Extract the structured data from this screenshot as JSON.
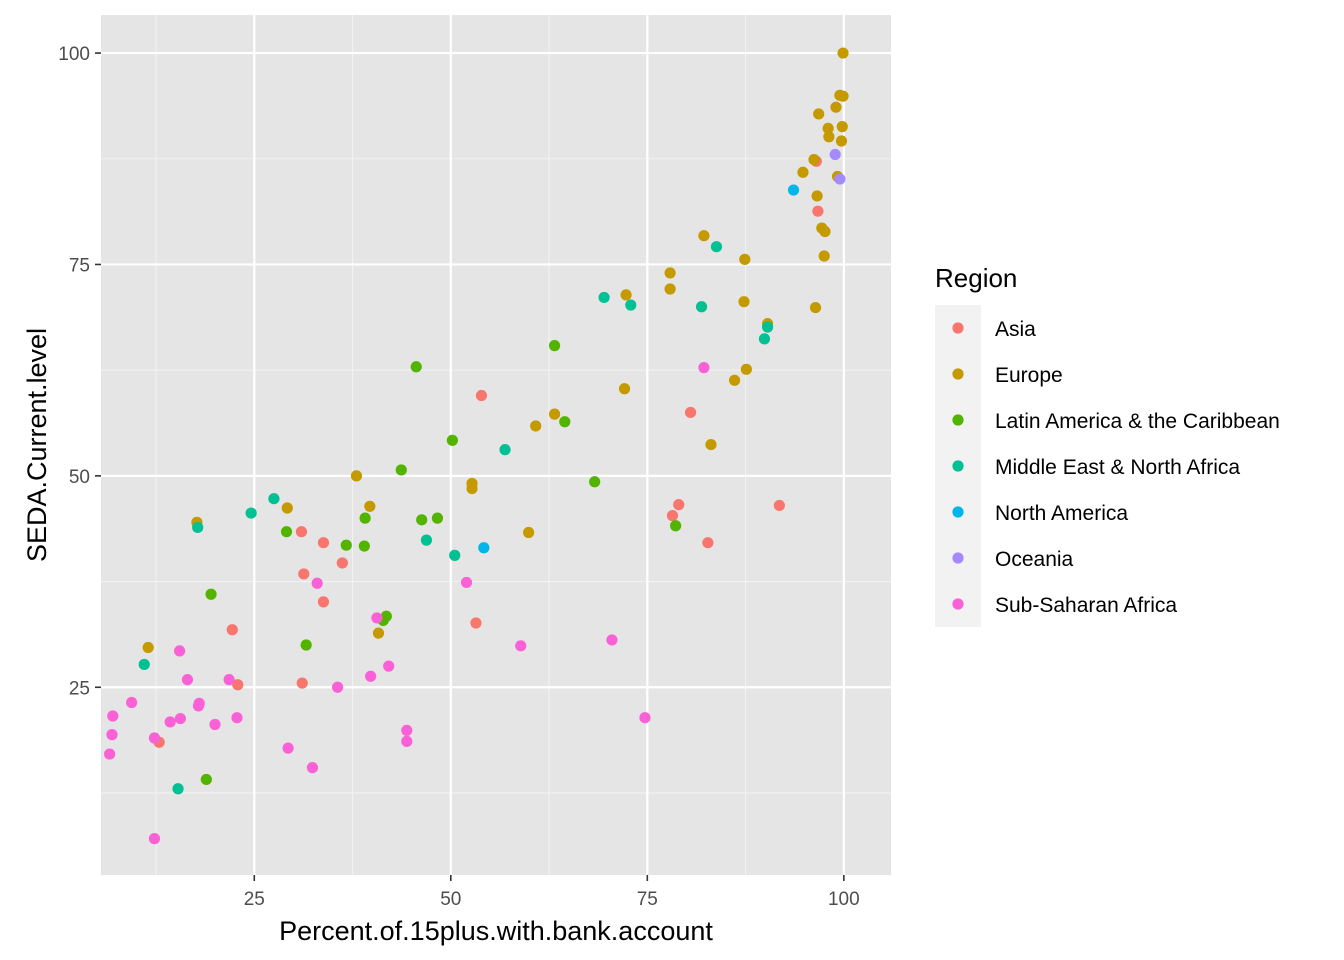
{
  "chart_data": {
    "type": "scatter",
    "title": "",
    "xlabel": "Percent.of.15plus.with.bank.account",
    "ylabel": "SEDA.Current.level",
    "xlim": [
      5.5,
      106
    ],
    "ylim": [
      2.8,
      104.5
    ],
    "xticks": [
      25,
      50,
      75,
      100
    ],
    "xtick_labels": [
      "25",
      "50",
      "75",
      "100"
    ],
    "yticks": [
      25,
      50,
      75,
      100
    ],
    "ytick_labels": [
      "25",
      "50",
      "75",
      "100"
    ],
    "grid": true,
    "background": "#E5E5E5",
    "legend": {
      "title": "Region",
      "position": "right"
    },
    "series": [
      {
        "name": "Asia",
        "color": "#F8766D",
        "points": [
          [
            96.5,
            87.2
          ],
          [
            96.7,
            81.3
          ],
          [
            53.9,
            59.5
          ],
          [
            80.5,
            57.5
          ],
          [
            91.8,
            46.5
          ],
          [
            79,
            46.6
          ],
          [
            78.2,
            45.3
          ],
          [
            82.7,
            42.1
          ],
          [
            31,
            43.4
          ],
          [
            33.8,
            42.1
          ],
          [
            36.2,
            39.7
          ],
          [
            31.3,
            38.4
          ],
          [
            33.8,
            35.1
          ],
          [
            53.2,
            32.6
          ],
          [
            22.2,
            31.8
          ],
          [
            22.9,
            25.3
          ],
          [
            31.1,
            25.5
          ],
          [
            12.9,
            18.5
          ]
        ]
      },
      {
        "name": "Europe",
        "color": "#C49A00",
        "points": [
          [
            99.9,
            100
          ],
          [
            99.5,
            95
          ],
          [
            99.9,
            94.9
          ],
          [
            99,
            93.6
          ],
          [
            96.8,
            92.8
          ],
          [
            98,
            91.1
          ],
          [
            99.8,
            91.3
          ],
          [
            98.1,
            90.1
          ],
          [
            99.7,
            89.6
          ],
          [
            96.2,
            87.4
          ],
          [
            94.8,
            85.9
          ],
          [
            99.2,
            85.4
          ],
          [
            96.6,
            83.1
          ],
          [
            97.2,
            79.3
          ],
          [
            97.6,
            78.9
          ],
          [
            82.2,
            78.4
          ],
          [
            97.5,
            76
          ],
          [
            87.4,
            75.6
          ],
          [
            77.9,
            74
          ],
          [
            77.9,
            72.1
          ],
          [
            72.3,
            71.4
          ],
          [
            87.3,
            70.6
          ],
          [
            96.4,
            69.9
          ],
          [
            90.3,
            68
          ],
          [
            87.6,
            62.6
          ],
          [
            72.1,
            60.3
          ],
          [
            86.1,
            61.3
          ],
          [
            63.2,
            57.3
          ],
          [
            60.8,
            55.9
          ],
          [
            83.1,
            53.7
          ],
          [
            38,
            50
          ],
          [
            52.7,
            49.1
          ],
          [
            52.7,
            48.5
          ],
          [
            39.7,
            46.4
          ],
          [
            29.2,
            46.2
          ],
          [
            17.7,
            44.5
          ],
          [
            59.9,
            43.3
          ],
          [
            40.8,
            31.4
          ],
          [
            11.5,
            29.7
          ]
        ]
      },
      {
        "name": "Latin America & the Caribbean",
        "color": "#53B400",
        "points": [
          [
            45.6,
            62.9
          ],
          [
            63.2,
            65.4
          ],
          [
            64.5,
            56.4
          ],
          [
            50.2,
            54.2
          ],
          [
            43.7,
            50.7
          ],
          [
            68.3,
            49.3
          ],
          [
            48.3,
            45
          ],
          [
            46.3,
            44.8
          ],
          [
            39.1,
            45
          ],
          [
            29.1,
            43.4
          ],
          [
            78.6,
            44.1
          ],
          [
            36.7,
            41.8
          ],
          [
            39,
            41.7
          ],
          [
            19.5,
            36
          ],
          [
            41.8,
            33.4
          ],
          [
            41.4,
            32.9
          ],
          [
            31.6,
            30
          ],
          [
            18.9,
            14.1
          ]
        ]
      },
      {
        "name": "Middle East & North Africa",
        "color": "#00C094",
        "points": [
          [
            69.5,
            71.1
          ],
          [
            72.9,
            70.2
          ],
          [
            83.8,
            77.1
          ],
          [
            81.9,
            70
          ],
          [
            90.3,
            67.6
          ],
          [
            89.9,
            66.2
          ],
          [
            56.9,
            53.1
          ],
          [
            27.5,
            47.3
          ],
          [
            24.6,
            45.6
          ],
          [
            17.8,
            43.9
          ],
          [
            46.9,
            42.4
          ],
          [
            50.5,
            40.6
          ],
          [
            11,
            27.7
          ],
          [
            15.3,
            13
          ]
        ]
      },
      {
        "name": "North America",
        "color": "#00B6EB",
        "points": [
          [
            93.6,
            83.8
          ],
          [
            54.2,
            41.5
          ]
        ]
      },
      {
        "name": "Oceania",
        "color": "#A58AFF",
        "points": [
          [
            98.9,
            88
          ],
          [
            99.5,
            85.1
          ]
        ]
      },
      {
        "name": "Sub-Saharan Africa",
        "color": "#FB61D7",
        "points": [
          [
            82.2,
            62.8
          ],
          [
            52,
            37.4
          ],
          [
            33,
            37.3
          ],
          [
            40.6,
            33.2
          ],
          [
            70.5,
            30.6
          ],
          [
            58.9,
            29.9
          ],
          [
            15.5,
            29.3
          ],
          [
            42.1,
            27.5
          ],
          [
            39.8,
            26.3
          ],
          [
            16.5,
            25.9
          ],
          [
            21.8,
            25.9
          ],
          [
            35.6,
            25
          ],
          [
            9.4,
            23.2
          ],
          [
            18,
            23.1
          ],
          [
            17.9,
            22.8
          ],
          [
            7,
            21.6
          ],
          [
            22.8,
            21.4
          ],
          [
            15.6,
            21.3
          ],
          [
            74.7,
            21.4
          ],
          [
            14.3,
            20.9
          ],
          [
            20,
            20.6
          ],
          [
            44.4,
            19.9
          ],
          [
            6.9,
            19.4
          ],
          [
            12.3,
            19
          ],
          [
            44.4,
            18.6
          ],
          [
            29.3,
            17.8
          ],
          [
            6.6,
            17.1
          ],
          [
            32.4,
            15.5
          ],
          [
            12.3,
            7.1
          ]
        ]
      }
    ]
  }
}
